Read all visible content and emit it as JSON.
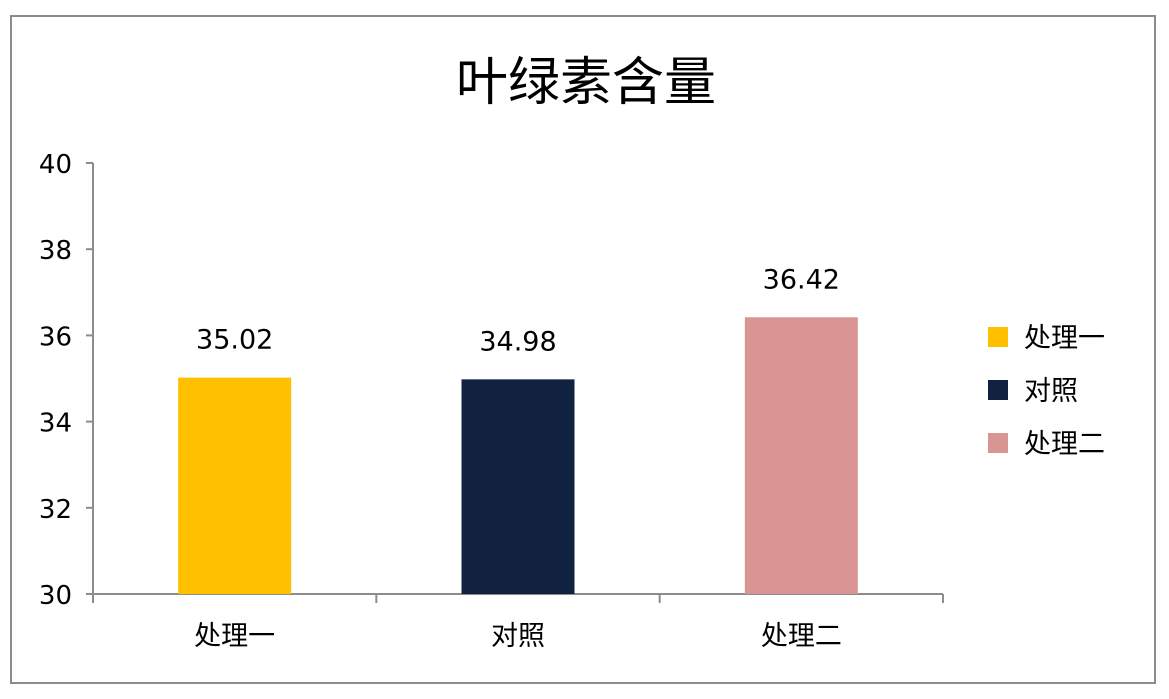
{
  "chart_data": {
    "type": "bar",
    "title": "叶绿素含量",
    "categories": [
      "处理一",
      "对照",
      "处理二"
    ],
    "series": [
      {
        "name": "处理一",
        "category": "处理一",
        "value": 35.02,
        "color": "#FFC000"
      },
      {
        "name": "对照",
        "category": "对照",
        "value": 34.98,
        "color": "#112240"
      },
      {
        "name": "处理二",
        "category": "处理二",
        "value": 36.42,
        "color": "#D99594"
      }
    ],
    "values": [
      35.02,
      34.98,
      36.42
    ],
    "value_labels": [
      "35.02",
      "34.98",
      "36.42"
    ],
    "ylim": [
      30,
      40
    ],
    "y_ticks": [
      "30",
      "32",
      "34",
      "36",
      "38",
      "40"
    ],
    "xlabel": "",
    "ylabel": "",
    "grid": false,
    "legend_position": "right"
  }
}
